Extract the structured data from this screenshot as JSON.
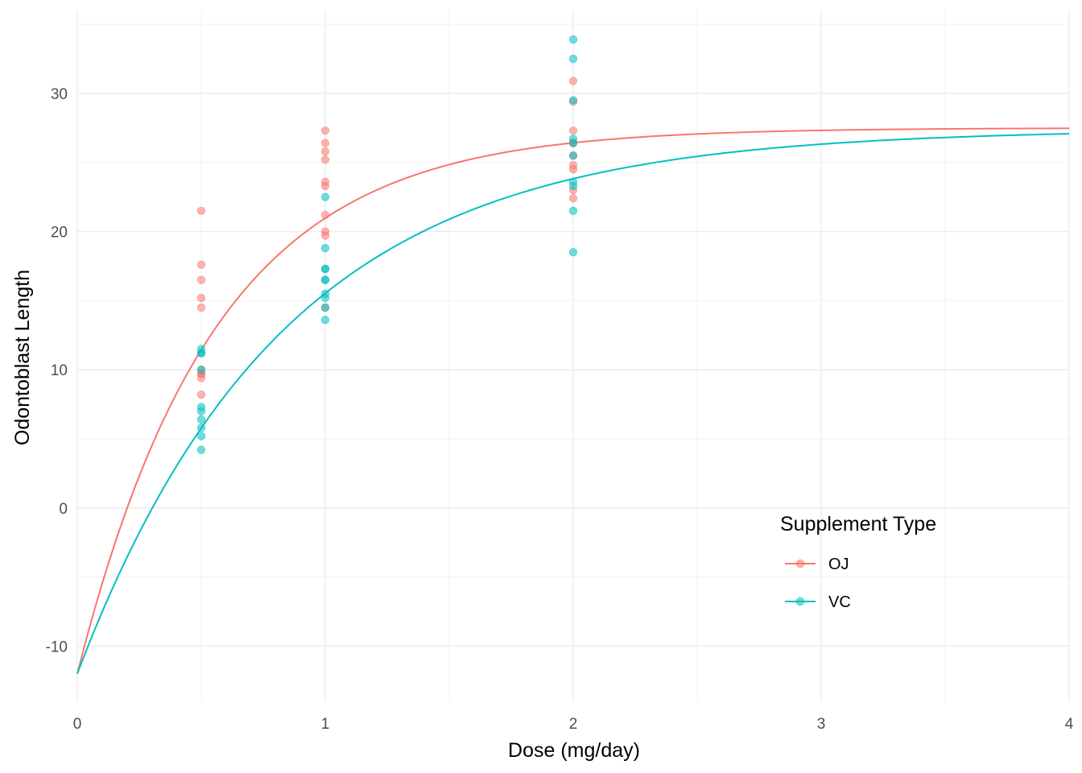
{
  "chart_data": {
    "type": "scatter",
    "title": "",
    "xlabel": "Dose (mg/day)",
    "ylabel": "Odontoblast Length",
    "xlim": [
      0,
      4
    ],
    "ylim": [
      -14,
      36
    ],
    "x_ticks": [
      0,
      1,
      2,
      3,
      4
    ],
    "y_ticks": [
      -10,
      0,
      10,
      20,
      30
    ],
    "grid": true,
    "legend": {
      "title": "Supplement Type",
      "placement": "bottom-right"
    },
    "series": [
      {
        "name": "OJ",
        "color": "#F8766D",
        "points": [
          [
            0.5,
            15.2
          ],
          [
            0.5,
            21.5
          ],
          [
            0.5,
            17.6
          ],
          [
            0.5,
            9.7
          ],
          [
            0.5,
            14.5
          ],
          [
            0.5,
            10.0
          ],
          [
            0.5,
            8.2
          ],
          [
            0.5,
            9.4
          ],
          [
            0.5,
            16.5
          ],
          [
            0.5,
            9.7
          ],
          [
            1,
            19.7
          ],
          [
            1,
            23.3
          ],
          [
            1,
            23.6
          ],
          [
            1,
            26.4
          ],
          [
            1,
            20.0
          ],
          [
            1,
            25.2
          ],
          [
            1,
            25.8
          ],
          [
            1,
            21.2
          ],
          [
            1,
            14.5
          ],
          [
            1,
            27.3
          ],
          [
            2,
            25.5
          ],
          [
            2,
            26.4
          ],
          [
            2,
            22.4
          ],
          [
            2,
            24.5
          ],
          [
            2,
            24.8
          ],
          [
            2,
            30.9
          ],
          [
            2,
            26.4
          ],
          [
            2,
            27.3
          ],
          [
            2,
            29.4
          ],
          [
            2,
            23.0
          ]
        ],
        "curve": {
          "asymptote": 27.5,
          "amplitude": 39.5,
          "rate": 1.8
        }
      },
      {
        "name": "VC",
        "color": "#00BFC4",
        "points": [
          [
            0.5,
            4.2
          ],
          [
            0.5,
            11.5
          ],
          [
            0.5,
            7.3
          ],
          [
            0.5,
            5.8
          ],
          [
            0.5,
            6.4
          ],
          [
            0.5,
            10.0
          ],
          [
            0.5,
            11.2
          ],
          [
            0.5,
            11.2
          ],
          [
            0.5,
            5.2
          ],
          [
            0.5,
            7.0
          ],
          [
            1,
            16.5
          ],
          [
            1,
            16.5
          ],
          [
            1,
            15.2
          ],
          [
            1,
            17.3
          ],
          [
            1,
            22.5
          ],
          [
            1,
            17.3
          ],
          [
            1,
            13.6
          ],
          [
            1,
            14.5
          ],
          [
            1,
            18.8
          ],
          [
            1,
            15.5
          ],
          [
            2,
            23.6
          ],
          [
            2,
            18.5
          ],
          [
            2,
            33.9
          ],
          [
            2,
            25.5
          ],
          [
            2,
            26.4
          ],
          [
            2,
            32.5
          ],
          [
            2,
            26.7
          ],
          [
            2,
            21.5
          ],
          [
            2,
            23.3
          ],
          [
            2,
            29.5
          ]
        ],
        "curve": {
          "asymptote": 27.4,
          "amplitude": 39.4,
          "rate": 1.2
        }
      }
    ]
  }
}
